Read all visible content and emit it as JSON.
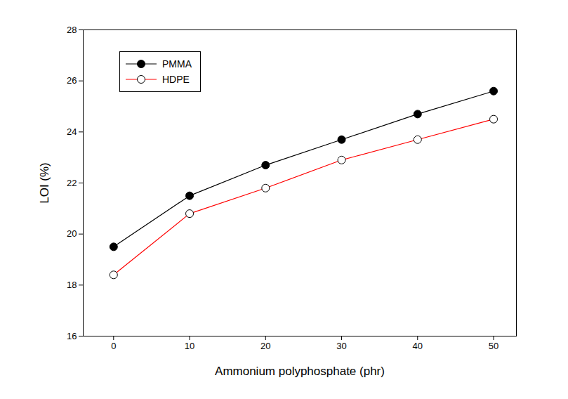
{
  "chart_data": {
    "type": "line",
    "x_label": "Ammonium polyphosphate (phr)",
    "y_label": "LOI (%)",
    "x": [
      0,
      10,
      20,
      30,
      40,
      50
    ],
    "series": [
      {
        "name": "PMMA",
        "color": "#000000",
        "marker": "filled_circle",
        "values": [
          19.5,
          21.5,
          22.7,
          23.7,
          24.7,
          25.6
        ]
      },
      {
        "name": "HDPE",
        "color": "#ff0000",
        "marker": "open_circle",
        "values": [
          18.4,
          20.8,
          21.8,
          22.9,
          23.7,
          24.5
        ]
      }
    ],
    "xlim": [
      -4,
      53
    ],
    "xticks": [
      0,
      10,
      20,
      30,
      40,
      50
    ],
    "ylim": [
      16,
      28
    ],
    "yticks": [
      16,
      18,
      20,
      22,
      24,
      26,
      28
    ],
    "grid": false,
    "legend": "upper left"
  }
}
